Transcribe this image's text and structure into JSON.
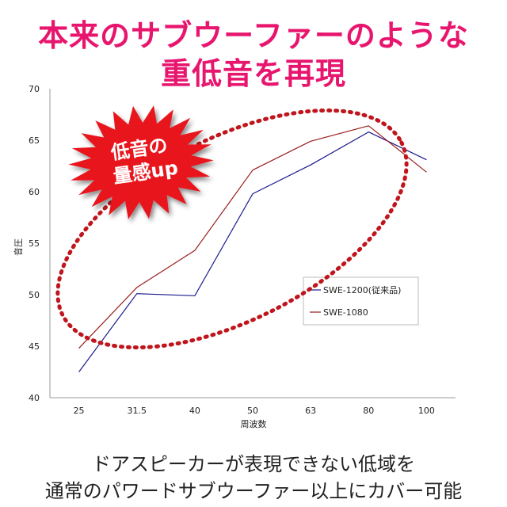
{
  "headline": {
    "line1": "本来のサブウーファーのような",
    "line2": "重低音を再現"
  },
  "badge": {
    "line1": "低音の",
    "line2": "量感up",
    "color": "#e8151d"
  },
  "caption": {
    "line1": "ドアスピーカーが表現できない低域を",
    "line2": "通常のパワードサブウーファー以上にカバー可能"
  },
  "colors": {
    "headline": "#e8156e",
    "highlight_ellipse": "#c0151d"
  },
  "chart_data": {
    "type": "line",
    "categories": [
      "25",
      "31.5",
      "40",
      "50",
      "63",
      "80",
      "100"
    ],
    "series": [
      {
        "name": "SWE-1200(従来品)",
        "color": "#1a1a8c",
        "values": [
          42.5,
          50.1,
          49.9,
          59.8,
          62.6,
          65.8,
          63.1
        ]
      },
      {
        "name": "SWE-1080",
        "color": "#9b1c1c",
        "values": [
          44.8,
          50.7,
          54.3,
          62.1,
          64.9,
          66.4,
          61.9
        ]
      }
    ],
    "xlabel": "周波数",
    "ylabel": "音圧",
    "ylim": [
      40,
      70
    ],
    "yticks": [
      "40",
      "45",
      "50",
      "55",
      "60",
      "65",
      "70"
    ],
    "grid": false,
    "legend_position": "right"
  }
}
